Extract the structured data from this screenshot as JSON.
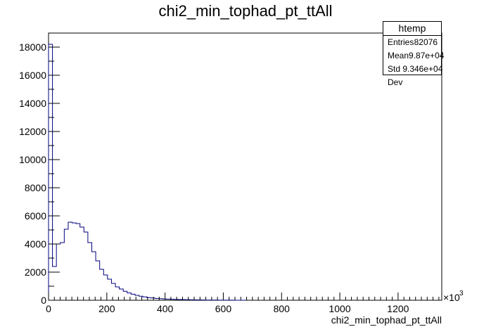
{
  "chart_data": {
    "type": "histogram",
    "title": "chi2_min_tophad_pt_ttAll",
    "xlabel": "chi2_min_tophad_pt_ttAll",
    "ylabel": "",
    "x_multiplier_label": "×10",
    "x_multiplier_exponent": "3",
    "xlim": [
      0,
      1350
    ],
    "ylim": [
      0,
      19000
    ],
    "bin_width": 13.5,
    "xticks": [
      0,
      200,
      400,
      600,
      800,
      1000,
      1200
    ],
    "xtick_labels": [
      "0",
      "200",
      "400",
      "600",
      "800",
      "1000",
      "1200"
    ],
    "yticks": [
      0,
      2000,
      4000,
      6000,
      8000,
      10000,
      12000,
      14000,
      16000,
      18000
    ],
    "ytick_labels": [
      "0",
      "2000",
      "4000",
      "6000",
      "8000",
      "10000",
      "12000",
      "14000",
      "16000",
      "18000"
    ],
    "values": [
      18200,
      2400,
      4000,
      4100,
      5050,
      5550,
      5500,
      5450,
      5200,
      4850,
      4100,
      3450,
      2800,
      2200,
      1800,
      1500,
      1200,
      950,
      800,
      640,
      520,
      430,
      350,
      290,
      235,
      190,
      160,
      130,
      110,
      95,
      80,
      68,
      58,
      50,
      42,
      36,
      31,
      27,
      22,
      18,
      14,
      12,
      10,
      8,
      6,
      5,
      4,
      3,
      2,
      1
    ],
    "line_color": "#000080",
    "grid": false
  },
  "stats": {
    "title": "htemp",
    "rows": [
      {
        "label": "Entries",
        "value": "82076"
      },
      {
        "label": "Mean",
        "value": "9.87e+04"
      },
      {
        "label": "Std Dev",
        "value": "9.346e+04"
      }
    ]
  }
}
